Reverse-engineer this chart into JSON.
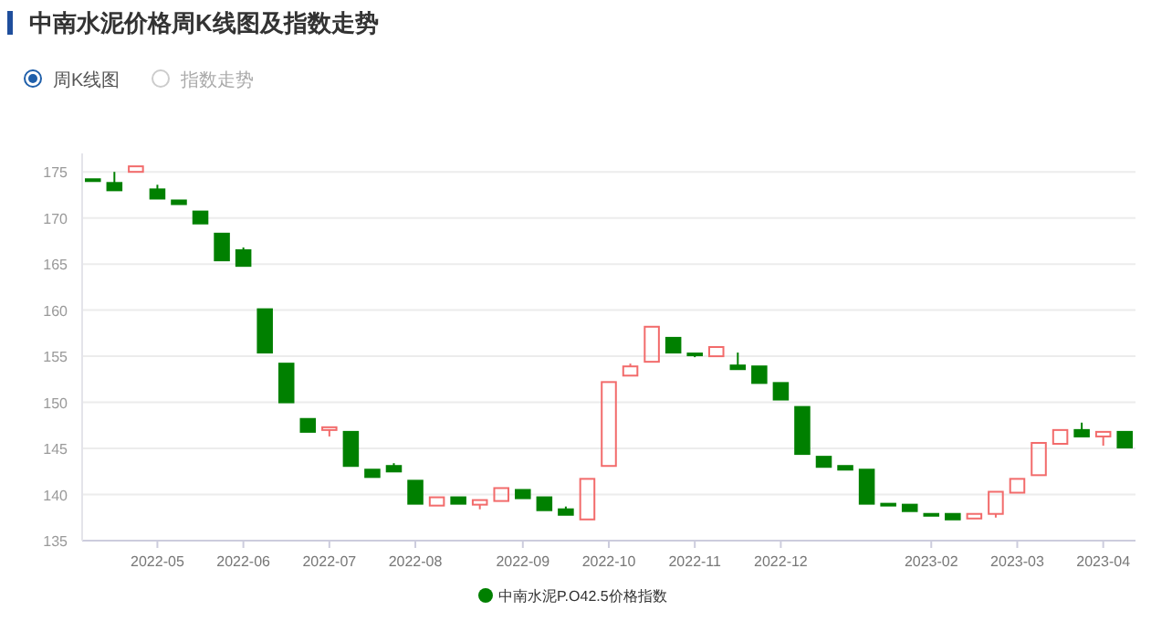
{
  "chart_data": {
    "type": "candlestick",
    "title": "中南水泥价格周K线图及指数走势",
    "annotations": [
      "周K线图",
      "指数走势"
    ],
    "categories": [
      null,
      null,
      null,
      "2022-05",
      null,
      null,
      null,
      "2022-06",
      null,
      null,
      null,
      "2022-07",
      null,
      null,
      null,
      "2022-08",
      null,
      null,
      null,
      null,
      "2022-09",
      null,
      null,
      null,
      "2022-10",
      null,
      null,
      null,
      "2022-11",
      null,
      null,
      null,
      "2022-12",
      null,
      null,
      null,
      null,
      null,
      null,
      "2023-02",
      null,
      null,
      null,
      "2023-03",
      null,
      null,
      null,
      "2023-04",
      null
    ],
    "series": [
      {
        "name": "中南水泥P.O42.5价格指数",
        "color": "#008000",
        "ohlc": [
          [
            174.2,
            174.2,
            174.0,
            174.0
          ],
          [
            173.8,
            175.0,
            173.0,
            173.0
          ],
          [
            175.0,
            175.6,
            175.0,
            175.6
          ],
          [
            173.1,
            173.6,
            172.1,
            172.1
          ],
          [
            171.9,
            171.9,
            171.5,
            171.5
          ],
          [
            170.7,
            170.7,
            169.4,
            169.4
          ],
          [
            168.3,
            168.3,
            165.4,
            165.4
          ],
          [
            166.5,
            166.8,
            164.8,
            164.8
          ],
          [
            160.1,
            160.1,
            155.4,
            155.4
          ],
          [
            154.2,
            154.2,
            150.0,
            150.0
          ],
          [
            148.2,
            148.2,
            146.8,
            146.8
          ],
          [
            147.0,
            147.3,
            146.3,
            147.3
          ],
          [
            146.8,
            146.8,
            143.1,
            143.1
          ],
          [
            142.7,
            142.7,
            141.9,
            141.9
          ],
          [
            143.1,
            143.4,
            142.5,
            142.5
          ],
          [
            141.5,
            141.5,
            139.0,
            139.0
          ],
          [
            138.8,
            139.7,
            138.8,
            139.7
          ],
          [
            139.7,
            139.7,
            139.0,
            139.0
          ],
          [
            138.9,
            139.4,
            138.4,
            139.4
          ],
          [
            139.3,
            140.7,
            139.3,
            140.7
          ],
          [
            140.5,
            140.5,
            139.6,
            139.6
          ],
          [
            139.7,
            139.7,
            138.3,
            138.3
          ],
          [
            138.4,
            138.7,
            137.8,
            137.8
          ],
          [
            137.3,
            141.7,
            137.3,
            141.7
          ],
          [
            143.1,
            152.2,
            143.1,
            152.2
          ],
          [
            152.9,
            154.2,
            152.9,
            153.9
          ],
          [
            154.4,
            158.2,
            154.4,
            158.2
          ],
          [
            157.0,
            157.0,
            155.4,
            155.4
          ],
          [
            155.3,
            155.3,
            154.9,
            155.1
          ],
          [
            155.0,
            156.0,
            155.0,
            156.0
          ],
          [
            154.0,
            155.4,
            153.6,
            153.6
          ],
          [
            153.9,
            153.9,
            152.1,
            152.1
          ],
          [
            152.1,
            152.1,
            150.3,
            150.3
          ],
          [
            149.5,
            149.5,
            144.4,
            144.4
          ],
          [
            144.1,
            144.1,
            143.0,
            143.0
          ],
          [
            143.1,
            143.1,
            142.7,
            142.7
          ],
          [
            142.7,
            142.7,
            139.0,
            139.0
          ],
          [
            139.0,
            139.0,
            138.9,
            138.9
          ],
          [
            138.9,
            138.9,
            138.2,
            138.2
          ],
          [
            137.9,
            137.9,
            137.7,
            137.7
          ],
          [
            137.9,
            137.9,
            137.3,
            137.3
          ],
          [
            137.4,
            137.9,
            137.4,
            137.9
          ],
          [
            137.9,
            140.3,
            137.5,
            140.3
          ],
          [
            140.2,
            141.7,
            140.2,
            141.7
          ],
          [
            142.1,
            145.6,
            142.1,
            145.6
          ],
          [
            145.5,
            147.0,
            145.5,
            147.0
          ],
          [
            147.0,
            147.8,
            146.3,
            146.3
          ],
          [
            146.3,
            146.8,
            145.3,
            146.8
          ],
          [
            146.8,
            146.8,
            145.1,
            145.1
          ]
        ],
        "colors": [
          "#008000",
          "#008000",
          "#f26b6b",
          "#008000",
          "#008000",
          "#008000",
          "#008000",
          "#008000",
          "#008000",
          "#008000",
          "#008000",
          "#f26b6b",
          "#008000",
          "#008000",
          "#008000",
          "#008000",
          "#f26b6b",
          "#008000",
          "#f26b6b",
          "#f26b6b",
          "#008000",
          "#008000",
          "#008000",
          "#f26b6b",
          "#f26b6b",
          "#f26b6b",
          "#f26b6b",
          "#008000",
          "#008000",
          "#f26b6b",
          "#008000",
          "#008000",
          "#008000",
          "#008000",
          "#008000",
          "#008000",
          "#008000",
          "#008000",
          "#008000",
          "#008000",
          "#008000",
          "#f26b6b",
          "#f26b6b",
          "#f26b6b",
          "#f26b6b",
          "#f26b6b",
          "#008000",
          "#f26b6b",
          "#008000"
        ]
      }
    ],
    "ylim": [
      135,
      177
    ],
    "yticks": [
      135,
      140,
      145,
      150,
      155,
      160,
      165,
      170,
      175
    ],
    "grid": "y",
    "legend": "bottom"
  }
}
